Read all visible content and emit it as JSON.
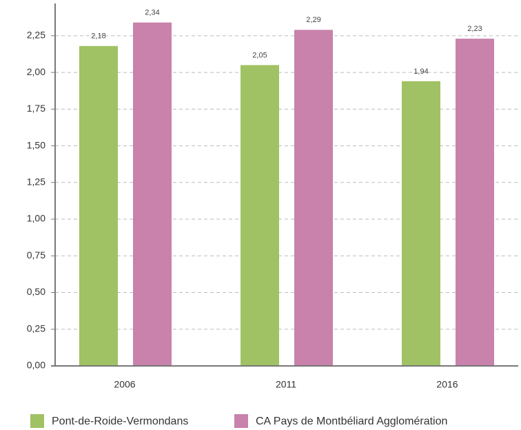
{
  "chart_data": {
    "type": "bar",
    "categories": [
      "2006",
      "2011",
      "2016"
    ],
    "series": [
      {
        "name": "Pont-de-Roide-Vermondans",
        "color": "#a0c264",
        "values": [
          2.18,
          2.05,
          1.94
        ],
        "value_labels": [
          "2,18",
          "2,05",
          "1,94"
        ]
      },
      {
        "name": "CA Pays de Montbéliard Agglomération",
        "color": "#c882ab",
        "values": [
          2.34,
          2.29,
          2.23
        ],
        "value_labels": [
          "2,34",
          "2,29",
          "2,23"
        ]
      }
    ],
    "ylim": [
      0,
      2.47
    ],
    "yticks": [
      {
        "value": 0,
        "label": "0,00"
      },
      {
        "value": 0.25,
        "label": "0,25"
      },
      {
        "value": 0.5,
        "label": "0,50"
      },
      {
        "value": 0.75,
        "label": "0,75"
      },
      {
        "value": 1,
        "label": "1,00"
      },
      {
        "value": 1.25,
        "label": "1,25"
      },
      {
        "value": 1.5,
        "label": "1,50"
      },
      {
        "value": 1.75,
        "label": "1,75"
      },
      {
        "value": 2,
        "label": "2,00"
      },
      {
        "value": 2.25,
        "label": "2,25"
      }
    ],
    "grid": true,
    "legend": "bottom"
  }
}
